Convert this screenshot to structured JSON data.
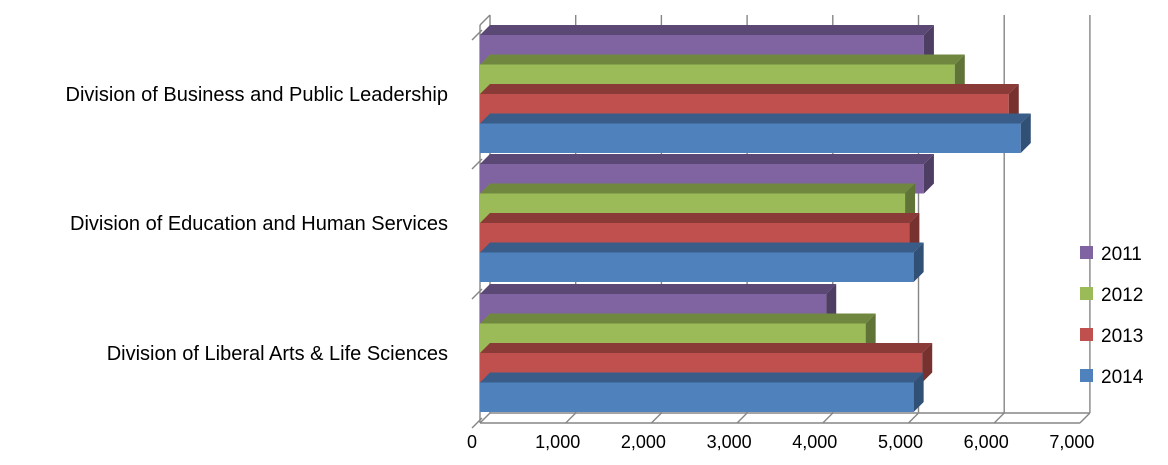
{
  "chart_data": {
    "type": "bar",
    "orientation": "horizontal",
    "style": "3d-clustered",
    "title": "",
    "xlabel": "",
    "ylabel": "",
    "categories": [
      "Division of Business and Public Leadership",
      "Division of Education and Human Services",
      "Division of Liberal Arts & Life Sciences"
    ],
    "series": [
      {
        "name": "2011",
        "color": "#8064a2",
        "values": [
          5180,
          5180,
          4040
        ]
      },
      {
        "name": "2012",
        "color": "#9bbb59",
        "values": [
          5540,
          4960,
          4500
        ]
      },
      {
        "name": "2013",
        "color": "#c0504d",
        "values": [
          6170,
          5010,
          5160
        ]
      },
      {
        "name": "2014",
        "color": "#4f81bd",
        "values": [
          6310,
          5060,
          5060
        ]
      }
    ],
    "xlim": [
      0,
      7000
    ],
    "x_ticks": [
      "0",
      "1,000",
      "2,000",
      "3,000",
      "4,000",
      "5,000",
      "6,000",
      "7,000"
    ],
    "grid": true,
    "legend": "right",
    "legend_order": [
      "2011",
      "2012",
      "2013",
      "2014"
    ]
  }
}
